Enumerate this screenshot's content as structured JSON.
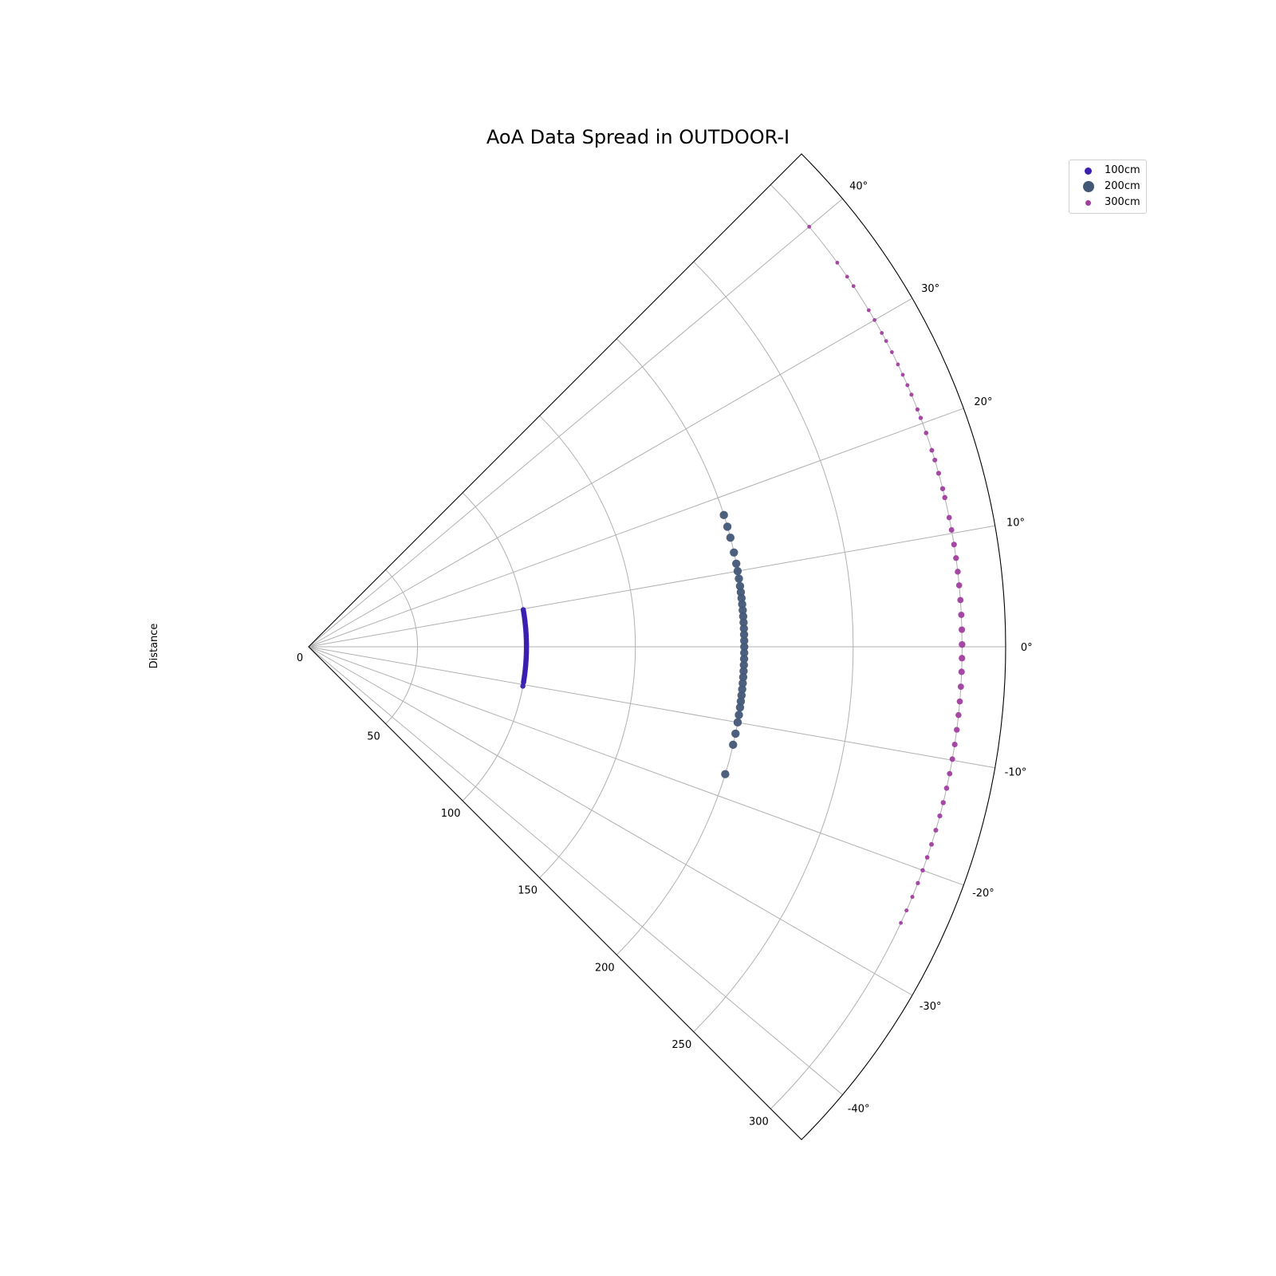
{
  "chart_data": {
    "type": "scatter",
    "projection": "polar",
    "title": "AoA Data Spread in OUTDOOR-I",
    "ylabel": "Distance",
    "theta_range_deg": [
      -45,
      45
    ],
    "r_range": [
      0,
      320
    ],
    "theta_ticks": [
      "40°",
      "30°",
      "20°",
      "10°",
      "0°",
      "-10°",
      "-20°",
      "-30°",
      "-40°"
    ],
    "r_ticks": [
      "0",
      "50",
      "100",
      "150",
      "200",
      "250",
      "300"
    ],
    "grid": true,
    "legend_position": "top-right",
    "series": [
      {
        "name": "100cm",
        "color": "#3a1fb0",
        "r": 100,
        "theta_deg": [
          9.8,
          9.4,
          9.0,
          8.6,
          8.2,
          7.8,
          7.4,
          7.0,
          6.6,
          6.2,
          5.8,
          5.4,
          5.0,
          4.6,
          4.2,
          3.8,
          3.4,
          3.0,
          2.6,
          2.2,
          1.8,
          1.4,
          1.0,
          0.6,
          0.2,
          -0.2,
          -0.6,
          -1.0,
          -1.4,
          -1.8,
          -2.2,
          -2.6,
          -3.0,
          -3.4,
          -3.8,
          -4.2,
          -4.6,
          -5.0,
          -5.4,
          -5.8,
          -6.2,
          -6.6,
          -7.0,
          -7.4,
          -7.8,
          -8.2,
          -8.6,
          -9.0,
          -9.4,
          -10.4
        ]
      },
      {
        "name": "200cm",
        "color": "#435877",
        "r": 200,
        "theta_deg": [
          17.6,
          16.0,
          14.5,
          12.5,
          11.0,
          10.0,
          9.0,
          8.0,
          7.2,
          6.4,
          5.6,
          4.8,
          4.0,
          3.2,
          2.4,
          1.6,
          0.8,
          0.0,
          -0.8,
          -1.6,
          -2.4,
          -3.2,
          -4.0,
          -4.8,
          -5.6,
          -6.4,
          -7.2,
          -8.0,
          -9.0,
          -10.0,
          -11.5,
          -13.0,
          -17.0
        ]
      },
      {
        "name": "300cm",
        "color": "#a03fa0",
        "r": 300,
        "theta_deg": [
          40.0,
          36.0,
          34.5,
          33.5,
          31.0,
          30.0,
          28.7,
          27.9,
          26.8,
          25.6,
          24.6,
          23.6,
          22.7,
          21.3,
          20.5,
          19.1,
          17.5,
          16.6,
          15.4,
          14.0,
          13.2,
          11.4,
          10.3,
          9.0,
          7.8,
          6.6,
          5.4,
          4.1,
          2.8,
          1.5,
          0.2,
          -1.0,
          -2.2,
          -3.5,
          -4.8,
          -6.0,
          -7.3,
          -8.6,
          -9.9,
          -11.2,
          -12.5,
          -13.8,
          -15.0,
          -16.3,
          -17.6,
          -18.8,
          -20.0,
          -21.2,
          -22.5,
          -23.8,
          -25.0
        ]
      }
    ]
  }
}
